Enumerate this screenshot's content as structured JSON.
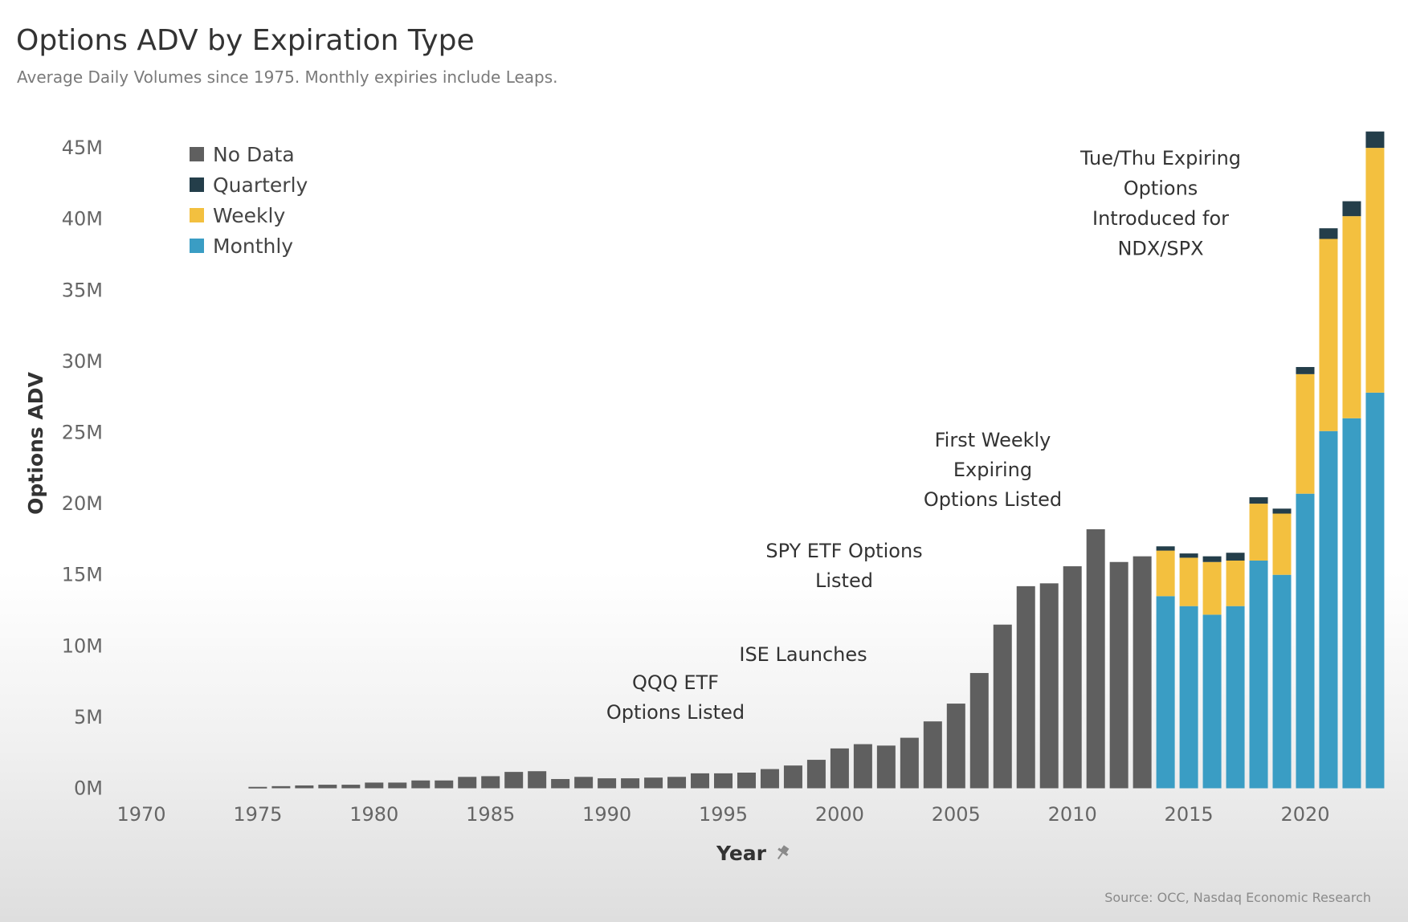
{
  "title": "Options ADV by Expiration Type",
  "subtitle": "Average Daily Volumes since 1975. Monthly expiries include Leaps.",
  "source": "Source: OCC, Nasdaq Economic Research",
  "chart_data": {
    "type": "bar",
    "stacked": true,
    "xlabel": "Year",
    "xlabel_icon": "pin-icon",
    "ylabel": "Options ADV",
    "ylim": [
      0,
      46000000
    ],
    "xlim": [
      1969,
      2024
    ],
    "y_ticks": [
      {
        "value": 0,
        "label": "0M"
      },
      {
        "value": 5000000,
        "label": "5M"
      },
      {
        "value": 10000000,
        "label": "10M"
      },
      {
        "value": 15000000,
        "label": "15M"
      },
      {
        "value": 20000000,
        "label": "20M"
      },
      {
        "value": 25000000,
        "label": "25M"
      },
      {
        "value": 30000000,
        "label": "30M"
      },
      {
        "value": 35000000,
        "label": "35M"
      },
      {
        "value": 40000000,
        "label": "40M"
      },
      {
        "value": 45000000,
        "label": "45M"
      }
    ],
    "x_ticks": [
      {
        "value": 1970,
        "label": "1970"
      },
      {
        "value": 1975,
        "label": "1975"
      },
      {
        "value": 1980,
        "label": "1980"
      },
      {
        "value": 1985,
        "label": "1985"
      },
      {
        "value": 1990,
        "label": "1990"
      },
      {
        "value": 1995,
        "label": "1995"
      },
      {
        "value": 2000,
        "label": "2000"
      },
      {
        "value": 2005,
        "label": "2005"
      },
      {
        "value": 2010,
        "label": "2010"
      },
      {
        "value": 2015,
        "label": "2015"
      },
      {
        "value": 2020,
        "label": "2020"
      }
    ],
    "legend_position": "top-left",
    "grid": false,
    "series_order": [
      "Monthly",
      "Weekly",
      "Quarterly",
      "No Data"
    ],
    "legend": [
      {
        "name": "No Data",
        "color": "#5f5f5f"
      },
      {
        "name": "Quarterly",
        "color": "#243e4a"
      },
      {
        "name": "Weekly",
        "color": "#f3c03f"
      },
      {
        "name": "Monthly",
        "color": "#3a9dc4"
      }
    ],
    "colors": {
      "No Data": "#5f5f5f",
      "Quarterly": "#243e4a",
      "Weekly": "#f3c03f",
      "Monthly": "#3a9dc4"
    },
    "years": [
      1975,
      1976,
      1977,
      1978,
      1979,
      1980,
      1981,
      1982,
      1983,
      1984,
      1985,
      1986,
      1987,
      1988,
      1989,
      1990,
      1991,
      1992,
      1993,
      1994,
      1995,
      1996,
      1997,
      1998,
      1999,
      2000,
      2001,
      2002,
      2003,
      2004,
      2005,
      2006,
      2007,
      2008,
      2009,
      2010,
      2011,
      2012,
      2013,
      2014,
      2015,
      2016,
      2017,
      2018,
      2019,
      2020,
      2021,
      2022,
      2023
    ],
    "series": [
      {
        "name": "No Data",
        "values": [
          100000,
          150000,
          200000,
          250000,
          250000,
          400000,
          400000,
          550000,
          550000,
          800000,
          850000,
          1150000,
          1200000,
          650000,
          800000,
          700000,
          700000,
          750000,
          800000,
          1050000,
          1050000,
          1100000,
          1350000,
          1600000,
          2000000,
          2800000,
          3100000,
          3000000,
          3550000,
          4700000,
          5950000,
          8100000,
          11500000,
          14200000,
          14400000,
          15600000,
          18200000,
          15900000,
          16300000,
          0,
          0,
          0,
          0,
          0,
          0,
          0,
          0,
          0,
          0
        ]
      },
      {
        "name": "Monthly",
        "values": [
          0,
          0,
          0,
          0,
          0,
          0,
          0,
          0,
          0,
          0,
          0,
          0,
          0,
          0,
          0,
          0,
          0,
          0,
          0,
          0,
          0,
          0,
          0,
          0,
          0,
          0,
          0,
          0,
          0,
          0,
          0,
          0,
          0,
          0,
          0,
          0,
          0,
          0,
          0,
          13500000,
          12800000,
          12200000,
          12800000,
          16000000,
          15000000,
          20700000,
          25100000,
          26000000,
          27800000
        ]
      },
      {
        "name": "Weekly",
        "values": [
          0,
          0,
          0,
          0,
          0,
          0,
          0,
          0,
          0,
          0,
          0,
          0,
          0,
          0,
          0,
          0,
          0,
          0,
          0,
          0,
          0,
          0,
          0,
          0,
          0,
          0,
          0,
          0,
          0,
          0,
          0,
          0,
          0,
          0,
          0,
          0,
          0,
          0,
          0,
          3200000,
          3400000,
          3700000,
          3200000,
          4000000,
          4300000,
          8400000,
          13500000,
          14200000,
          17200000
        ]
      },
      {
        "name": "Quarterly",
        "values": [
          0,
          0,
          0,
          0,
          0,
          0,
          0,
          0,
          0,
          0,
          0,
          0,
          0,
          0,
          0,
          0,
          0,
          0,
          0,
          0,
          0,
          0,
          0,
          0,
          0,
          0,
          0,
          0,
          0,
          0,
          0,
          0,
          0,
          0,
          0,
          0,
          0,
          0,
          0,
          300000,
          300000,
          400000,
          550000,
          450000,
          350000,
          500000,
          750000,
          1050000,
          1150000
        ]
      }
    ],
    "annotations": [
      {
        "lines": [
          "QQQ ETF",
          "Options Listed"
        ],
        "year": 1999
      },
      {
        "lines": [
          "ISE Launches"
        ],
        "year": 2000
      },
      {
        "lines": [
          "SPY ETF Options",
          "Listed"
        ],
        "year": 2003
      },
      {
        "lines": [
          "First Weekly",
          "Expiring",
          "Options Listed"
        ],
        "year": 2008
      },
      {
        "lines": [
          "Tue/Thu Expiring",
          "Options",
          "Introduced for",
          "NDX/SPX"
        ],
        "year": 2022
      }
    ]
  }
}
